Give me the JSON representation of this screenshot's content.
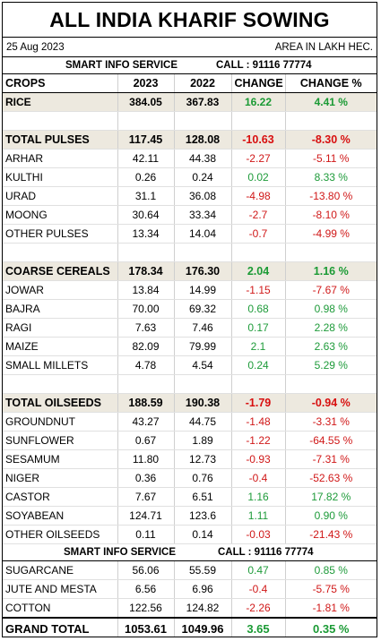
{
  "title": "ALL INDIA KHARIF SOWING",
  "date": "25 Aug 2023",
  "unit_note": "AREA IN LAKH HEC.",
  "banner": {
    "service": "SMART INFO SERVICE",
    "call": "CALL : 91116 77774"
  },
  "columns": [
    "CROPS",
    "2023",
    "2022",
    "CHANGE",
    "CHANGE %"
  ],
  "rice": {
    "name": "RICE",
    "y2023": "384.05",
    "y2022": "367.83",
    "change": "16.22",
    "pct": "4.41 %"
  },
  "pulses": {
    "total": {
      "name": "TOTAL PULSES",
      "y2023": "117.45",
      "y2022": "128.08",
      "change": "-10.63",
      "pct": "-8.30 %"
    },
    "rows": [
      {
        "name": "ARHAR",
        "y2023": "42.11",
        "y2022": "44.38",
        "change": "-2.27",
        "pct": "-5.11 %"
      },
      {
        "name": "KULTHI",
        "y2023": "0.26",
        "y2022": "0.24",
        "change": "0.02",
        "pct": "8.33 %"
      },
      {
        "name": "URAD",
        "y2023": "31.1",
        "y2022": "36.08",
        "change": "-4.98",
        "pct": "-13.80 %"
      },
      {
        "name": "MOONG",
        "y2023": "30.64",
        "y2022": "33.34",
        "change": "-2.7",
        "pct": "-8.10 %"
      },
      {
        "name": "OTHER PULSES",
        "y2023": "13.34",
        "y2022": "14.04",
        "change": "-0.7",
        "pct": "-4.99 %"
      }
    ]
  },
  "cereals": {
    "total": {
      "name": "COARSE CEREALS",
      "y2023": "178.34",
      "y2022": "176.30",
      "change": "2.04",
      "pct": "1.16 %"
    },
    "rows": [
      {
        "name": "JOWAR",
        "y2023": "13.84",
        "y2022": "14.99",
        "change": "-1.15",
        "pct": "-7.67 %"
      },
      {
        "name": "BAJRA",
        "y2023": "70.00",
        "y2022": "69.32",
        "change": "0.68",
        "pct": "0.98 %"
      },
      {
        "name": "RAGI",
        "y2023": "7.63",
        "y2022": "7.46",
        "change": "0.17",
        "pct": "2.28 %"
      },
      {
        "name": "MAIZE",
        "y2023": "82.09",
        "y2022": "79.99",
        "change": "2.1",
        "pct": "2.63 %"
      },
      {
        "name": "SMALL MILLETS",
        "y2023": "4.78",
        "y2022": "4.54",
        "change": "0.24",
        "pct": "5.29 %"
      }
    ]
  },
  "oilseeds": {
    "total": {
      "name": "TOTAL OILSEEDS",
      "y2023": "188.59",
      "y2022": "190.38",
      "change": "-1.79",
      "pct": "-0.94 %"
    },
    "rows": [
      {
        "name": "GROUNDNUT",
        "y2023": "43.27",
        "y2022": "44.75",
        "change": "-1.48",
        "pct": "-3.31 %"
      },
      {
        "name": "SUNFLOWER",
        "y2023": "0.67",
        "y2022": "1.89",
        "change": "-1.22",
        "pct": "-64.55 %"
      },
      {
        "name": "SESAMUM",
        "y2023": "11.80",
        "y2022": "12.73",
        "change": "-0.93",
        "pct": "-7.31 %"
      },
      {
        "name": "NIGER",
        "y2023": "0.36",
        "y2022": "0.76",
        "change": "-0.4",
        "pct": "-52.63 %"
      },
      {
        "name": "CASTOR",
        "y2023": "7.67",
        "y2022": "6.51",
        "change": "1.16",
        "pct": "17.82 %"
      },
      {
        "name": "SOYABEAN",
        "y2023": "124.71",
        "y2022": "123.6",
        "change": "1.11",
        "pct": "0.90 %"
      },
      {
        "name": "OTHER OILSEEDS",
        "y2023": "0.11",
        "y2022": "0.14",
        "change": "-0.03",
        "pct": "-21.43 %"
      }
    ]
  },
  "others": [
    {
      "name": "SUGARCANE",
      "y2023": "56.06",
      "y2022": "55.59",
      "change": "0.47",
      "pct": "0.85 %"
    },
    {
      "name": "JUTE AND MESTA",
      "y2023": "6.56",
      "y2022": "6.96",
      "change": "-0.4",
      "pct": "-5.75 %"
    },
    {
      "name": "COTTON",
      "y2023": "122.56",
      "y2022": "124.82",
      "change": "-2.26",
      "pct": "-1.81 %"
    }
  ],
  "grand_total": {
    "name": "GRAND TOTAL",
    "y2023": "1053.61",
    "y2022": "1049.96",
    "change": "3.65",
    "pct": "0.35 %"
  },
  "colors": {
    "positive": "#1e9b3a",
    "negative": "#d01818",
    "section_bg": "#ede9df"
  }
}
